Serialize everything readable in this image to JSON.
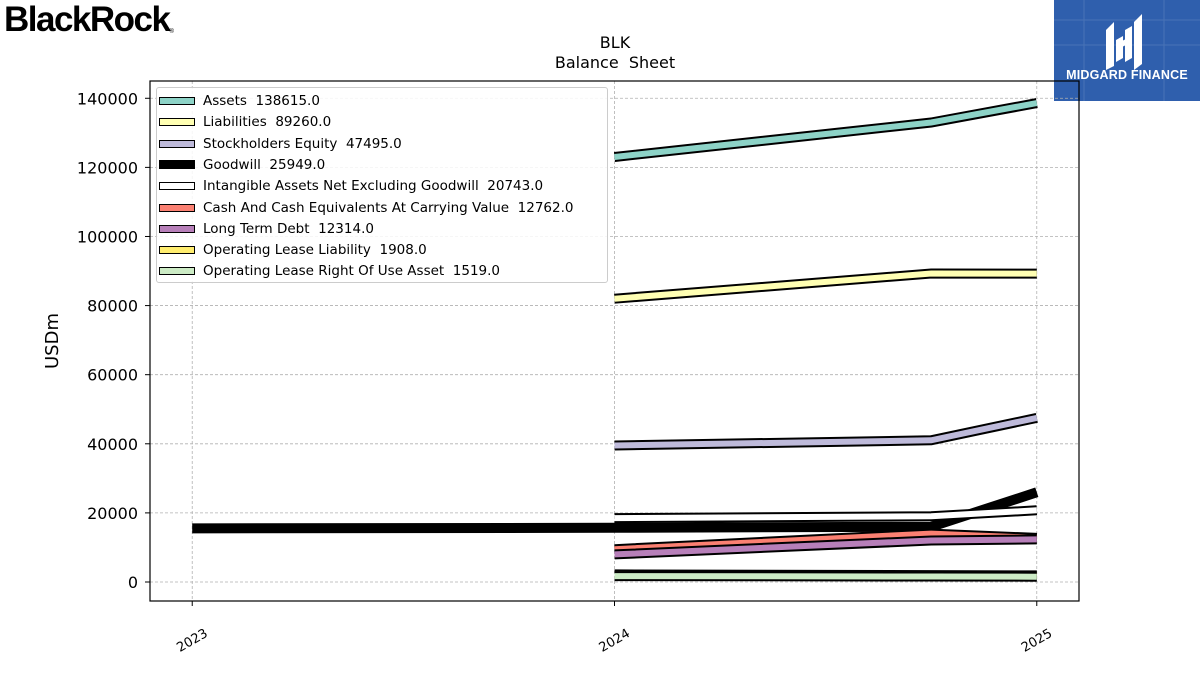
{
  "brand": {
    "name": "BlackRock",
    "mark": "®"
  },
  "badge": {
    "text": "MIDGARD FINANCE"
  },
  "chart_data": {
    "type": "line",
    "title": "BLK",
    "subtitle": "Balance  Sheet",
    "xlabel": "",
    "ylabel": "USDm",
    "x_ticks": [
      "2023",
      "2024",
      "2025"
    ],
    "ylim": [
      -5500,
      145000
    ],
    "yticks": [
      0,
      20000,
      40000,
      60000,
      80000,
      100000,
      120000,
      140000
    ],
    "grid": true,
    "legend_position": "top-left",
    "series": [
      {
        "name": "Assets",
        "legend_label": "Assets  138615.0",
        "color": "#8dd3c7",
        "points": [
          [
            2024.0,
            123000
          ],
          [
            2024.75,
            133000
          ],
          [
            2025.0,
            138615
          ]
        ]
      },
      {
        "name": "Liabilities",
        "legend_label": "Liabilities  89260.0",
        "color": "#ffffb3",
        "points": [
          [
            2024.0,
            82000
          ],
          [
            2024.75,
            89300
          ],
          [
            2025.0,
            89260
          ]
        ]
      },
      {
        "name": "Stockholders Equity",
        "legend_label": "Stockholders Equity  47495.0",
        "color": "#bebada",
        "points": [
          [
            2024.0,
            39500
          ],
          [
            2024.75,
            41000
          ],
          [
            2025.0,
            47495
          ]
        ]
      },
      {
        "name": "Goodwill",
        "legend_label": "Goodwill  25949.0",
        "color": "#000000",
        "thick": true,
        "points": [
          [
            2023.0,
            15500
          ],
          [
            2024.0,
            15700
          ],
          [
            2024.75,
            16000
          ],
          [
            2025.0,
            25949
          ]
        ]
      },
      {
        "name": "Intangible Assets Net Excluding Goodwill",
        "legend_label": "Intangible Assets Net Excluding Goodwill  20743.0",
        "color": "#ffffff",
        "points": [
          [
            2024.0,
            18500
          ],
          [
            2024.75,
            19000
          ],
          [
            2025.0,
            20743
          ]
        ]
      },
      {
        "name": "Cash And Cash Equivalents At Carrying Value",
        "legend_label": "Cash And Cash Equivalents At Carrying Value  12762.0",
        "color": "#fb8072",
        "points": [
          [
            2024.0,
            9500
          ],
          [
            2024.75,
            14000
          ],
          [
            2025.0,
            12762
          ]
        ]
      },
      {
        "name": "Long Term Debt",
        "legend_label": "Long Term Debt  12314.0",
        "color": "#b77fb9",
        "points": [
          [
            2024.0,
            8000
          ],
          [
            2024.75,
            12000
          ],
          [
            2025.0,
            12314
          ]
        ]
      },
      {
        "name": "Operating Lease Liability",
        "legend_label": "Operating Lease Liability  1908.0",
        "color": "#ffed6f",
        "points": [
          [
            2024.0,
            2200
          ],
          [
            2024.75,
            2000
          ],
          [
            2025.0,
            1908
          ]
        ]
      },
      {
        "name": "Operating Lease Right Of Use Asset",
        "legend_label": "Operating Lease Right Of Use Asset  1519.0",
        "color": "#ccebc5",
        "points": [
          [
            2024.0,
            1700
          ],
          [
            2024.75,
            1600
          ],
          [
            2025.0,
            1519
          ]
        ]
      }
    ]
  }
}
